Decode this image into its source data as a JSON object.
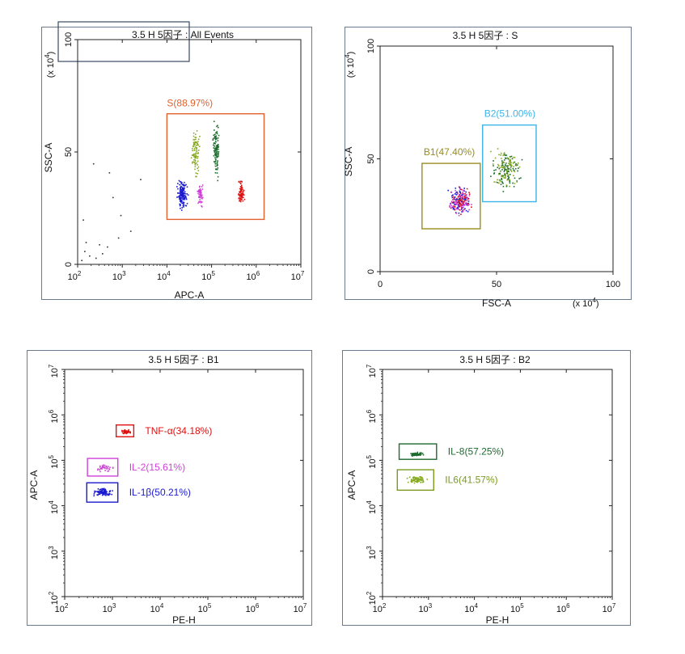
{
  "chart_data": [
    {
      "type": "scatter",
      "title": "3.5  H 5因子 : All Events",
      "xlabel": "APC-A",
      "ylabel": "SSC-A",
      "x_scale": "log",
      "xlim": [
        100,
        10000000
      ],
      "ylim": [
        0,
        100
      ],
      "y_multiplier": "(x 10",
      "y_multiplier_exp": "4",
      "x_ticks": [
        {
          "base": "10",
          "exp": "2",
          "v": 100
        },
        {
          "base": "10",
          "exp": "3",
          "v": 1000
        },
        {
          "base": "10",
          "exp": "4",
          "v": 10000
        },
        {
          "base": "10",
          "exp": "5",
          "v": 100000
        },
        {
          "base": "10",
          "exp": "6",
          "v": 1000000
        },
        {
          "base": "10",
          "exp": "7",
          "v": 10000000
        }
      ],
      "y_ticks": [
        {
          "label": "0",
          "v": 0
        },
        {
          "label": "50",
          "v": 50
        },
        {
          "label": "100",
          "v": 100
        }
      ],
      "gates": [
        {
          "label": "S(88.97%)",
          "color": "#e0622e",
          "x": [
            10000,
            1500000
          ],
          "y": [
            20,
            67
          ]
        }
      ],
      "clusters": [
        {
          "color": "#1a1ad0",
          "x": [
            15000,
            30000
          ],
          "y": [
            24,
            39
          ],
          "n": 150
        },
        {
          "color": "#d040d8",
          "x": [
            45000,
            65000
          ],
          "y": [
            25,
            38
          ],
          "n": 60
        },
        {
          "color": "#88aa22",
          "x": [
            33000,
            55000
          ],
          "y": [
            35,
            65
          ],
          "n": 90
        },
        {
          "color": "#1e6b2e",
          "x": [
            100000,
            150000
          ],
          "y": [
            35,
            66
          ],
          "n": 110
        },
        {
          "color": "#e01010",
          "x": [
            350000,
            550000
          ],
          "y": [
            25,
            39
          ],
          "n": 70
        }
      ],
      "stray": [
        {
          "x": 120,
          "y": 2
        },
        {
          "x": 180,
          "y": 4
        },
        {
          "x": 250,
          "y": 3
        },
        {
          "x": 300,
          "y": 9
        },
        {
          "x": 450,
          "y": 8
        },
        {
          "x": 800,
          "y": 12
        },
        {
          "x": 1500,
          "y": 15
        },
        {
          "x": 150,
          "y": 10
        },
        {
          "x": 220,
          "y": 45
        },
        {
          "x": 500,
          "y": 41
        },
        {
          "x": 2500,
          "y": 38
        },
        {
          "x": 900,
          "y": 22
        },
        {
          "x": 130,
          "y": 20
        },
        {
          "x": 600,
          "y": 30
        },
        {
          "x": 140,
          "y": 6
        },
        {
          "x": 350,
          "y": 5
        }
      ]
    },
    {
      "type": "scatter",
      "title": "3.5  H 5因子 : S",
      "xlabel": "FSC-A",
      "ylabel": "SSC-A",
      "x_scale": "linear",
      "xlim": [
        0,
        100
      ],
      "ylim": [
        0,
        100
      ],
      "y_multiplier": "(x 10",
      "y_multiplier_exp": "4",
      "x_multiplier": "(x 10",
      "x_multiplier_exp": "4",
      "x_ticks": [
        {
          "label": "0",
          "v": 0
        },
        {
          "label": "50",
          "v": 50
        },
        {
          "label": "100",
          "v": 100
        }
      ],
      "y_ticks": [
        {
          "label": "0",
          "v": 0
        },
        {
          "label": "50",
          "v": 50
        },
        {
          "label": "100",
          "v": 100
        }
      ],
      "gates": [
        {
          "label": "B1(47.40%)",
          "color": "#9a8c1f",
          "x": [
            18,
            43
          ],
          "y": [
            19,
            48
          ]
        },
        {
          "label": "B2(51.00%)",
          "color": "#3cb4e6",
          "x": [
            44,
            67
          ],
          "y": [
            31,
            65
          ]
        }
      ],
      "clusters": [
        {
          "color": "#1a1ad0",
          "x": [
            28,
            40
          ],
          "y": [
            23,
            40
          ],
          "n": 90
        },
        {
          "color": "#e01010",
          "x": [
            29,
            40
          ],
          "y": [
            24,
            39
          ],
          "n": 70
        },
        {
          "color": "#d040d8",
          "x": [
            28,
            40
          ],
          "y": [
            24,
            39
          ],
          "n": 60
        },
        {
          "color": "#1e6b2e",
          "x": [
            46,
            62
          ],
          "y": [
            34,
            57
          ],
          "n": 110
        },
        {
          "color": "#88aa22",
          "x": [
            46,
            62
          ],
          "y": [
            34,
            58
          ],
          "n": 80
        }
      ],
      "stray": []
    },
    {
      "type": "scatter",
      "title": "3.5  H 5因子 : B1",
      "xlabel": "PE-H",
      "ylabel": "APC-A",
      "x_scale": "log",
      "y_scale": "log",
      "xlim": [
        100,
        10000000
      ],
      "ylim": [
        100,
        10000000
      ],
      "x_ticks": [
        {
          "base": "10",
          "exp": "2",
          "v": 100
        },
        {
          "base": "10",
          "exp": "3",
          "v": 1000
        },
        {
          "base": "10",
          "exp": "4",
          "v": 10000
        },
        {
          "base": "10",
          "exp": "5",
          "v": 100000
        },
        {
          "base": "10",
          "exp": "6",
          "v": 1000000
        },
        {
          "base": "10",
          "exp": "7",
          "v": 10000000
        }
      ],
      "y_ticks": [
        {
          "base": "10",
          "exp": "2",
          "v": 100
        },
        {
          "base": "10",
          "exp": "3",
          "v": 1000
        },
        {
          "base": "10",
          "exp": "4",
          "v": 10000
        },
        {
          "base": "10",
          "exp": "5",
          "v": 100000
        },
        {
          "base": "10",
          "exp": "6",
          "v": 1000000
        },
        {
          "base": "10",
          "exp": "7",
          "v": 10000000
        }
      ],
      "gates": [
        {
          "label": "TNF-α(34.18%)",
          "color": "#e01010",
          "x": [
            1200,
            2800
          ],
          "y": [
            330000,
            600000
          ]
        },
        {
          "label": "IL-2(15.61%)",
          "color": "#d040d8",
          "x": [
            300,
            1300
          ],
          "y": [
            45000,
            110000
          ]
        },
        {
          "label": "IL-1β(50.21%)",
          "color": "#1a1ad0",
          "x": [
            290,
            1300
          ],
          "y": [
            12000,
            32000
          ]
        }
      ],
      "clusters": [
        {
          "color": "#e01010",
          "x": [
            1400,
            2600
          ],
          "y": [
            380000,
            500000
          ],
          "n": 55
        },
        {
          "color": "#d040d8",
          "x": [
            400,
            1100
          ],
          "y": [
            55000,
            85000
          ],
          "n": 35
        },
        {
          "color": "#1a1ad0",
          "x": [
            350,
            1100
          ],
          "y": [
            16000,
            26000
          ],
          "n": 100
        }
      ],
      "stray": []
    },
    {
      "type": "scatter",
      "title": "3.5  H 5因子 : B2",
      "xlabel": "PE-H",
      "ylabel": "APC-A",
      "x_scale": "log",
      "y_scale": "log",
      "xlim": [
        100,
        10000000
      ],
      "ylim": [
        100,
        10000000
      ],
      "x_ticks": [
        {
          "base": "10",
          "exp": "2",
          "v": 100
        },
        {
          "base": "10",
          "exp": "3",
          "v": 1000
        },
        {
          "base": "10",
          "exp": "4",
          "v": 10000
        },
        {
          "base": "10",
          "exp": "5",
          "v": 100000
        },
        {
          "base": "10",
          "exp": "6",
          "v": 1000000
        },
        {
          "base": "10",
          "exp": "7",
          "v": 10000000
        }
      ],
      "y_ticks": [
        {
          "base": "10",
          "exp": "2",
          "v": 100
        },
        {
          "base": "10",
          "exp": "3",
          "v": 1000
        },
        {
          "base": "10",
          "exp": "4",
          "v": 10000
        },
        {
          "base": "10",
          "exp": "5",
          "v": 100000
        },
        {
          "base": "10",
          "exp": "6",
          "v": 1000000
        },
        {
          "base": "10",
          "exp": "7",
          "v": 10000000
        }
      ],
      "gates": [
        {
          "label": "IL-8(57.25%)",
          "color": "#1e6b2e",
          "x": [
            230,
            1500
          ],
          "y": [
            105000,
            230000
          ]
        },
        {
          "label": "IL6(41.57%)",
          "color": "#7a9a1f",
          "x": [
            210,
            1300
          ],
          "y": [
            22000,
            62000
          ]
        }
      ],
      "clusters": [
        {
          "color": "#1e6b2e",
          "x": [
            350,
            800
          ],
          "y": [
            125000,
            165000
          ],
          "n": 60
        },
        {
          "color": "#88aa22",
          "x": [
            300,
            1000
          ],
          "y": [
            30000,
            50000
          ],
          "n": 70
        }
      ],
      "stray": []
    }
  ]
}
